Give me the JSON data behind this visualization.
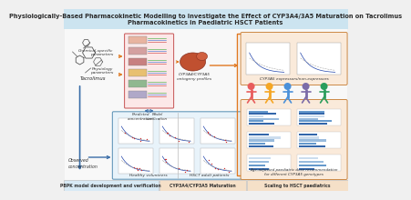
{
  "title_line1": "Physiologically-Based Pharmacokinetic Modelling to Investigate the Effect of CYP3A4/3A5 Maturation on Tacrolimus",
  "title_line2": "Pharmacokinetics in Paediatric HSCT Patients",
  "title_fontsize": 4.8,
  "title_color": "#2c2c2c",
  "title_bg": "#cce4f0",
  "bg_color": "#f0f0f0",
  "section1_label": "PBPK model development and verification",
  "section2_label": "CYP3A4/CYP3A5 Maturation",
  "section3_label": "Scaling to HSCT paediatrics",
  "section1_bg": "#d8eaf5",
  "section2_bg": "#f5e0c8",
  "section3_bg": "#f5e0c8",
  "chemical_label": "Chemical-specific\nparameters",
  "physio_label": "Physiology\nparameters",
  "predicted_label": "Predicted\nconcentration",
  "model_label": "Model\nverification",
  "observed_label": "Observed\nconcentration",
  "tacrolimus_label": "Tacrolimus",
  "cyp_label": "CYP3A4/CYP3A5\nontogeny profiles",
  "cyp_expressors": "CYP3A5 expressors/non-expressors",
  "healthy_label": "Healthy volunteers",
  "hsct_adult_label": "HSCT adult patients",
  "dose_label": "Age-adjusted paediatric dose recommendation\nfor different CYP3A5 genotypes",
  "arrow_color": "#3a6ea8",
  "orange_arrow": "#e07820",
  "inner_box_blue": "#e8f3fa",
  "inner_box_orange": "#faeada",
  "panel_border_blue": "#6699bb",
  "panel_border_orange": "#cc8844",
  "plot_blue": "#2244aa",
  "plot_gray": "#999999",
  "children_colors": [
    "#e85c5c",
    "#f5a623",
    "#4a90d9",
    "#7b6ba8",
    "#2a9d5c"
  ],
  "organ_colors": [
    "#e8b4a0",
    "#d4a0a0",
    "#c88080",
    "#e8c070",
    "#90b890",
    "#b0a8c8"
  ],
  "bar_colors": [
    "#3366aa",
    "#6699cc",
    "#99bbdd",
    "#ccddee"
  ]
}
